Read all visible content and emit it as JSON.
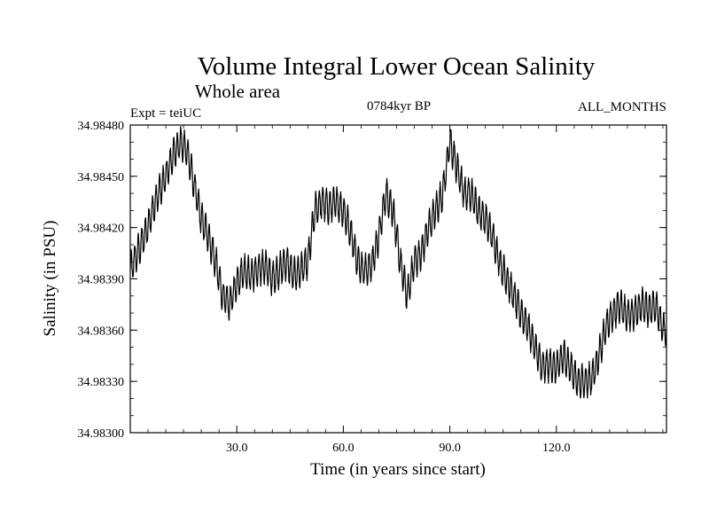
{
  "chart_data": {
    "type": "line",
    "title": "Volume Integral Lower Ocean Salinity",
    "subtitle": "Whole area",
    "annotations": {
      "experiment": "Expt = teiUC",
      "period": "0784kyr BP",
      "months": "ALL_MONTHS"
    },
    "xlabel": "Time (in years since start)",
    "ylabel": "Salinity (in PSU)",
    "xlim": [
      0,
      151
    ],
    "ylim": [
      34.983,
      34.9848
    ],
    "x_ticks": [
      30,
      60,
      90,
      120
    ],
    "x_tick_labels": [
      "30.0",
      "60.0",
      "90.0",
      "120.0"
    ],
    "y_ticks": [
      34.983,
      34.9833,
      34.9836,
      34.9839,
      34.9842,
      34.9845,
      34.9848
    ],
    "y_tick_labels": [
      "34.98300",
      "34.98330",
      "34.98360",
      "34.98390",
      "34.98420",
      "34.98450",
      "34.98480"
    ],
    "grid": false,
    "legend": "none",
    "series": [
      {
        "name": "salinity",
        "color": "#000000",
        "x": [
          0,
          2,
          4,
          6,
          8,
          10,
          12,
          14,
          16,
          18,
          20,
          22,
          24,
          26,
          28,
          30,
          32,
          34,
          36,
          38,
          40,
          42,
          44,
          46,
          48,
          50,
          52,
          54,
          56,
          58,
          60,
          62,
          64,
          66,
          68,
          70,
          72,
          74,
          76,
          78,
          80,
          82,
          84,
          86,
          88,
          90,
          92,
          94,
          96,
          98,
          100,
          102,
          104,
          106,
          108,
          110,
          112,
          114,
          116,
          118,
          120,
          122,
          124,
          126,
          128,
          130,
          132,
          134,
          136,
          138,
          140,
          142,
          144,
          146,
          148,
          150
        ],
        "values": [
          34.98395,
          34.98405,
          34.98415,
          34.98428,
          34.9844,
          34.9845,
          34.98462,
          34.9847,
          34.98465,
          34.98445,
          34.98425,
          34.98415,
          34.984,
          34.9838,
          34.98375,
          34.98388,
          34.98395,
          34.98392,
          34.98395,
          34.98398,
          34.9839,
          34.98395,
          34.984,
          34.98392,
          34.98395,
          34.984,
          34.9843,
          34.98435,
          34.98432,
          34.98435,
          34.9843,
          34.98418,
          34.984,
          34.98395,
          34.98398,
          34.98415,
          34.9844,
          34.9843,
          34.984,
          34.9838,
          34.984,
          34.98405,
          34.9842,
          34.9843,
          34.9844,
          34.9847,
          34.98455,
          34.9844,
          34.9844,
          34.9843,
          34.98425,
          34.98415,
          34.984,
          34.9839,
          34.9838,
          34.9837,
          34.98362,
          34.9835,
          34.98338,
          34.9834,
          34.98338,
          34.98345,
          34.98338,
          34.9833,
          34.9833,
          34.98332,
          34.98345,
          34.98362,
          34.9837,
          34.98375,
          34.98368,
          34.9837,
          34.98375,
          34.98372,
          34.98375,
          34.9836
        ]
      }
    ]
  }
}
